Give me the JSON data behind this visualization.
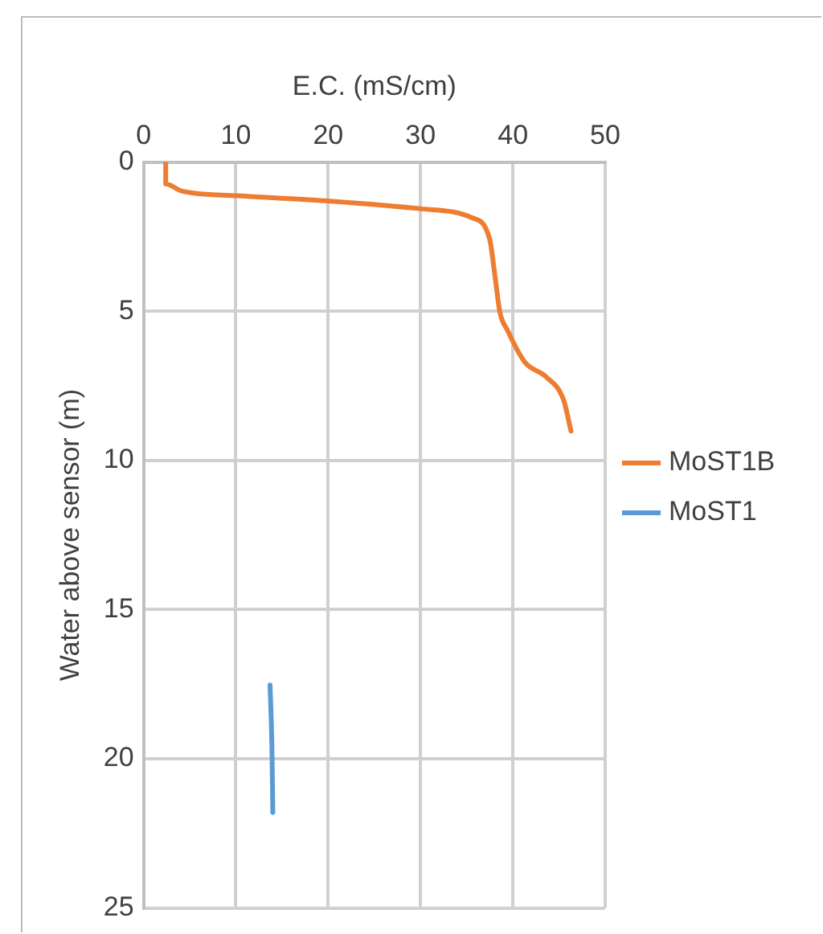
{
  "chart_data": {
    "type": "line",
    "xlabel": "E.C. (mS/cm)",
    "ylabel": "Water above sensor (m)",
    "xlim": [
      0,
      50
    ],
    "xticks": [
      0,
      10,
      20,
      30,
      40,
      50
    ],
    "ylim": [
      25,
      0
    ],
    "yticks": [
      0,
      5,
      10,
      15,
      20,
      25
    ],
    "grid": true,
    "legend": "right",
    "marker": "none",
    "series": [
      {
        "name": "MoST1B",
        "color": "#ed7d31",
        "x": [
          2.4,
          2.4,
          4.1,
          10.2,
          20.2,
          30.2,
          35.6,
          37.5,
          38.0,
          38.6,
          39.4,
          41.3,
          43.6,
          45.5,
          46.3
        ],
        "values": [
          0,
          0.73,
          0.97,
          1.13,
          1.31,
          1.57,
          1.87,
          2.6,
          3.67,
          5.04,
          5.63,
          6.71,
          7.2,
          7.98,
          9.02
        ]
      },
      {
        "name": "MoST1",
        "color": "#5b9bd5",
        "x": [
          13.7,
          13.9,
          14.0
        ],
        "values": [
          17.53,
          19.55,
          21.8
        ]
      }
    ]
  }
}
